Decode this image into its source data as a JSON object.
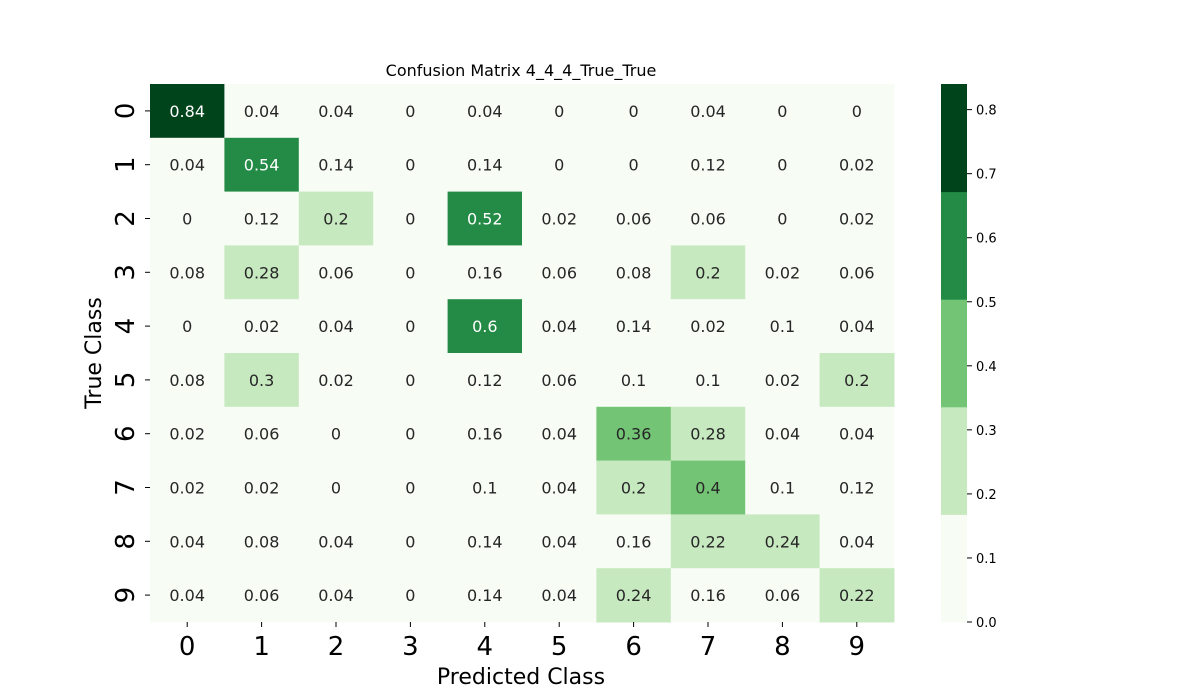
{
  "chart_data": {
    "type": "heatmap",
    "title": "Confusion Matrix 4_4_4_True_True",
    "xlabel": "Predicted Class",
    "ylabel": "True Class",
    "x_categories": [
      "0",
      "1",
      "2",
      "3",
      "4",
      "5",
      "6",
      "7",
      "8",
      "9"
    ],
    "y_categories": [
      "0",
      "1",
      "2",
      "3",
      "4",
      "5",
      "6",
      "7",
      "8",
      "9"
    ],
    "values": [
      [
        0.84,
        0.04,
        0.04,
        0,
        0.04,
        0,
        0,
        0.04,
        0,
        0
      ],
      [
        0.04,
        0.54,
        0.14,
        0,
        0.14,
        0,
        0,
        0.12,
        0,
        0.02
      ],
      [
        0,
        0.12,
        0.2,
        0,
        0.52,
        0.02,
        0.06,
        0.06,
        0,
        0.02
      ],
      [
        0.08,
        0.28,
        0.06,
        0,
        0.16,
        0.06,
        0.08,
        0.2,
        0.02,
        0.06
      ],
      [
        0,
        0.02,
        0.04,
        0,
        0.6,
        0.04,
        0.14,
        0.02,
        0.1,
        0.04
      ],
      [
        0.08,
        0.3,
        0.02,
        0,
        0.12,
        0.06,
        0.1,
        0.1,
        0.02,
        0.2
      ],
      [
        0.02,
        0.06,
        0,
        0,
        0.16,
        0.04,
        0.36,
        0.28,
        0.04,
        0.04
      ],
      [
        0.02,
        0.02,
        0,
        0,
        0.1,
        0.04,
        0.2,
        0.4,
        0.1,
        0.12
      ],
      [
        0.04,
        0.08,
        0.04,
        0,
        0.14,
        0.04,
        0.16,
        0.22,
        0.24,
        0.04
      ],
      [
        0.04,
        0.06,
        0.04,
        0,
        0.14,
        0.04,
        0.24,
        0.16,
        0.06,
        0.22
      ]
    ],
    "colorbar": {
      "range": [
        0,
        0.84
      ],
      "ticks": [
        "0.0",
        "0.1",
        "0.2",
        "0.3",
        "0.4",
        "0.5",
        "0.6",
        "0.7",
        "0.8"
      ],
      "bands": [
        {
          "from": 0.0,
          "to": 0.168,
          "color": "#f7fcf5"
        },
        {
          "from": 0.168,
          "to": 0.336,
          "color": "#c7e9c0"
        },
        {
          "from": 0.336,
          "to": 0.504,
          "color": "#74c476"
        },
        {
          "from": 0.504,
          "to": 0.672,
          "color": "#238b45"
        },
        {
          "from": 0.672,
          "to": 0.84,
          "color": "#00441b"
        }
      ]
    },
    "text_dark": "#262626",
    "text_light": "#ffffff"
  }
}
